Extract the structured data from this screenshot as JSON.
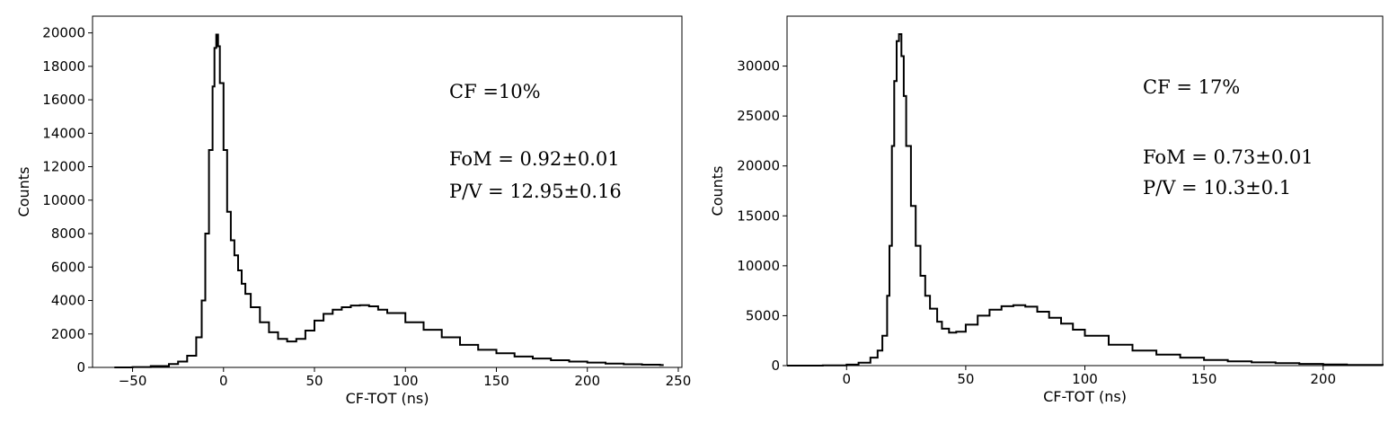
{
  "chart_data": [
    {
      "type": "line",
      "step": true,
      "xlabel": "CF-TOT (ns)",
      "ylabel": "Counts",
      "xlim": [
        -72,
        252
      ],
      "ylim": [
        0,
        21000
      ],
      "xticks": [
        -50,
        0,
        50,
        100,
        150,
        200,
        250
      ],
      "yticks": [
        0,
        2000,
        4000,
        6000,
        8000,
        10000,
        12000,
        14000,
        16000,
        18000,
        20000
      ],
      "grid": false,
      "annotations": [
        "CF =10%",
        "FoM = 0.92±0.01",
        "P/V = 12.95±0.16"
      ],
      "series": [
        {
          "x": [
            -60,
            -50,
            -40,
            -30,
            -25,
            -20,
            -15,
            -12,
            -10,
            -8,
            -6,
            -5,
            -4,
            -3,
            -2,
            0,
            2,
            4,
            6,
            8,
            10,
            12,
            15,
            20,
            25,
            30,
            35,
            40,
            45,
            50,
            55,
            60,
            65,
            70,
            75,
            80,
            85,
            90,
            100,
            110,
            120,
            130,
            140,
            150,
            160,
            170,
            180,
            190,
            200,
            210,
            220,
            230,
            240
          ],
          "y": [
            0,
            20,
            80,
            200,
            350,
            700,
            1800,
            4000,
            8000,
            13000,
            16800,
            19100,
            19900,
            19200,
            17000,
            13000,
            9300,
            7600,
            6700,
            5800,
            5000,
            4400,
            3600,
            2700,
            2100,
            1700,
            1550,
            1700,
            2200,
            2800,
            3200,
            3450,
            3600,
            3700,
            3720,
            3650,
            3450,
            3250,
            2700,
            2250,
            1800,
            1350,
            1050,
            850,
            650,
            530,
            430,
            350,
            290,
            230,
            190,
            160,
            140
          ]
        }
      ]
    },
    {
      "type": "line",
      "step": true,
      "xlabel": "CF-TOT (ns)",
      "ylabel": "Counts",
      "xlim": [
        -25,
        225
      ],
      "ylim": [
        0,
        35000
      ],
      "xticks": [
        0,
        50,
        100,
        150,
        200
      ],
      "yticks": [
        0,
        5000,
        10000,
        15000,
        20000,
        25000,
        30000
      ],
      "grid": false,
      "annotations": [
        "CF = 17%",
        "FoM = 0.73±0.01",
        "P/V = 10.3±0.1"
      ],
      "series": [
        {
          "x": [
            -25,
            -10,
            0,
            5,
            10,
            13,
            15,
            17,
            18,
            19,
            20,
            21,
            22,
            23,
            24,
            25,
            27,
            29,
            31,
            33,
            35,
            38,
            40,
            43,
            46,
            50,
            55,
            60,
            65,
            70,
            75,
            80,
            85,
            90,
            95,
            100,
            110,
            120,
            130,
            140,
            150,
            160,
            170,
            180,
            190,
            200,
            210,
            225
          ],
          "y": [
            0,
            20,
            100,
            300,
            800,
            1500,
            3000,
            7000,
            12000,
            22000,
            28500,
            32500,
            33200,
            31000,
            27000,
            22000,
            16000,
            12000,
            9000,
            7000,
            5700,
            4400,
            3700,
            3300,
            3400,
            4100,
            5000,
            5600,
            5950,
            6050,
            5900,
            5400,
            4800,
            4200,
            3600,
            3000,
            2100,
            1500,
            1100,
            800,
            560,
            420,
            320,
            240,
            170,
            110,
            70,
            30
          ]
        }
      ]
    }
  ]
}
